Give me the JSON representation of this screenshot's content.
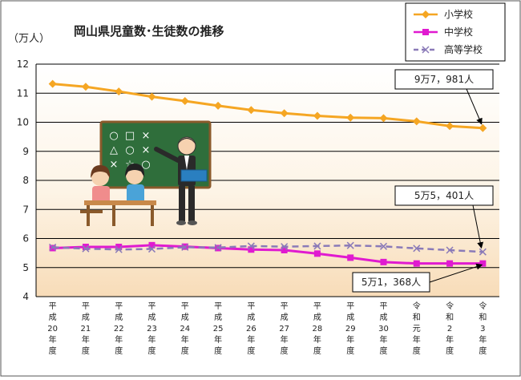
{
  "chart_data": {
    "type": "line",
    "title": "岡山県児童数･生徒数の推移",
    "unit_label": "（万人）",
    "categories": [
      [
        "平",
        "成",
        "20",
        "年",
        "度"
      ],
      [
        "平",
        "成",
        "21",
        "年",
        "度"
      ],
      [
        "平",
        "成",
        "22",
        "年",
        "度"
      ],
      [
        "平",
        "成",
        "23",
        "年",
        "度"
      ],
      [
        "平",
        "成",
        "24",
        "年",
        "度"
      ],
      [
        "平",
        "成",
        "25",
        "年",
        "度"
      ],
      [
        "平",
        "成",
        "26",
        "年",
        "度"
      ],
      [
        "平",
        "成",
        "27",
        "年",
        "度"
      ],
      [
        "平",
        "成",
        "28",
        "年",
        "度"
      ],
      [
        "平",
        "成",
        "29",
        "年",
        "度"
      ],
      [
        "平",
        "成",
        "30",
        "年",
        "度"
      ],
      [
        "令",
        "和",
        "元",
        "年",
        "度"
      ],
      [
        "令",
        "和",
        "2",
        "年",
        "度"
      ],
      [
        "令",
        "和",
        "3",
        "年",
        "度"
      ]
    ],
    "ylim": [
      4,
      12
    ],
    "yticks": [
      4,
      5,
      6,
      7,
      8,
      9,
      10,
      11,
      12
    ],
    "grid": true,
    "legend_position": "top-right",
    "series": [
      {
        "name": "小学校",
        "color": "#f5a623",
        "marker": "diamond",
        "dash": false,
        "values": [
          11.32,
          11.22,
          11.06,
          10.88,
          10.73,
          10.57,
          10.42,
          10.31,
          10.22,
          10.16,
          10.14,
          10.03,
          9.87,
          9.8
        ]
      },
      {
        "name": "中学校",
        "color": "#e01ad0",
        "marker": "square",
        "dash": false,
        "values": [
          5.67,
          5.71,
          5.71,
          5.77,
          5.72,
          5.67,
          5.62,
          5.6,
          5.48,
          5.34,
          5.19,
          5.14,
          5.14,
          5.14
        ]
      },
      {
        "name": "高等学校",
        "color": "#8a7ab8",
        "marker": "x",
        "dash": true,
        "values": [
          5.7,
          5.65,
          5.62,
          5.64,
          5.7,
          5.69,
          5.74,
          5.72,
          5.74,
          5.76,
          5.73,
          5.66,
          5.6,
          5.54
        ]
      }
    ],
    "annotations": [
      {
        "text": "9万7，981人",
        "target_series": 0,
        "target_index": 13
      },
      {
        "text": "5万5，401人",
        "target_series": 2,
        "target_index": 13
      },
      {
        "text": "5万1，368人",
        "target_series": 1,
        "target_index": 13
      }
    ]
  },
  "illustration": {
    "board_symbols": [
      "○",
      "□",
      "×",
      "△",
      "○",
      "×",
      "×",
      "☆",
      "○"
    ]
  }
}
